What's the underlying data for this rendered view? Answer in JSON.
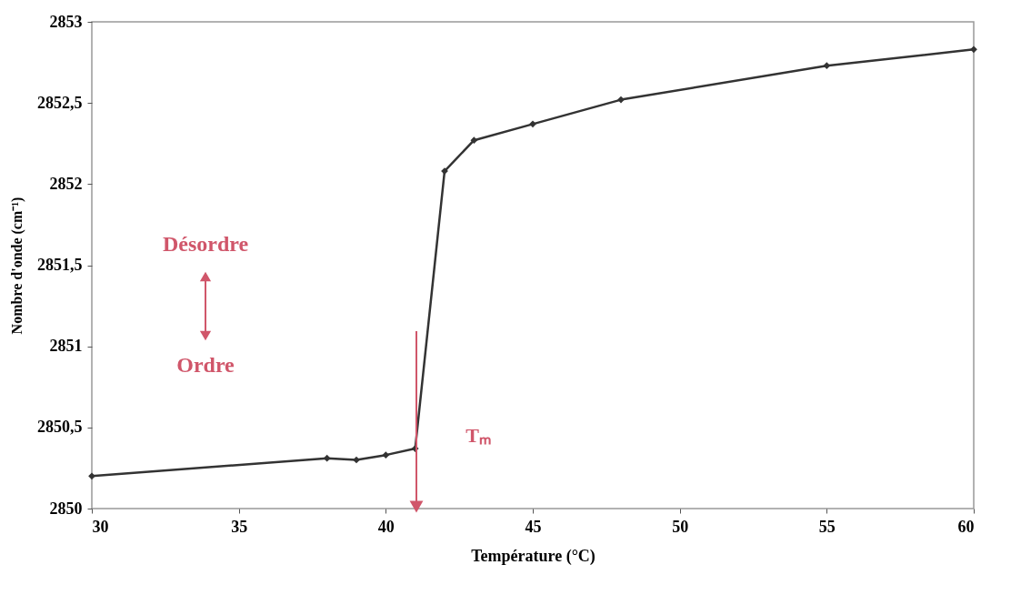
{
  "chart_data": {
    "type": "line",
    "xlabel": "Température (°C)",
    "ylabel": "Nombre d'onde (cm⁻¹)",
    "x": [
      30,
      38,
      39,
      40,
      41,
      42,
      43,
      45,
      48,
      55,
      60
    ],
    "series": [
      {
        "color": "#333333",
        "values": [
          2850.2,
          2850.31,
          2850.3,
          2850.33,
          2850.37,
          2852.08,
          2852.27,
          2852.37,
          2852.52,
          2852.73,
          2852.83
        ]
      }
    ],
    "xlim": [
      30,
      60
    ],
    "xticks": [
      30,
      35,
      40,
      45,
      50,
      55,
      60
    ],
    "ylim": [
      2850,
      2853
    ],
    "yticks": [
      2850,
      {
        "value": 2850.5,
        "label": "2850,5"
      },
      2851,
      {
        "value": 2851.5,
        "label": "2851,5"
      },
      2852,
      {
        "value": 2852.5,
        "label": "2852,5"
      },
      2853
    ],
    "grid": false,
    "marker": "diamond",
    "line_style": "solid",
    "annotations": [
      "Tₘ",
      "Désordre",
      "Ordre"
    ]
  }
}
